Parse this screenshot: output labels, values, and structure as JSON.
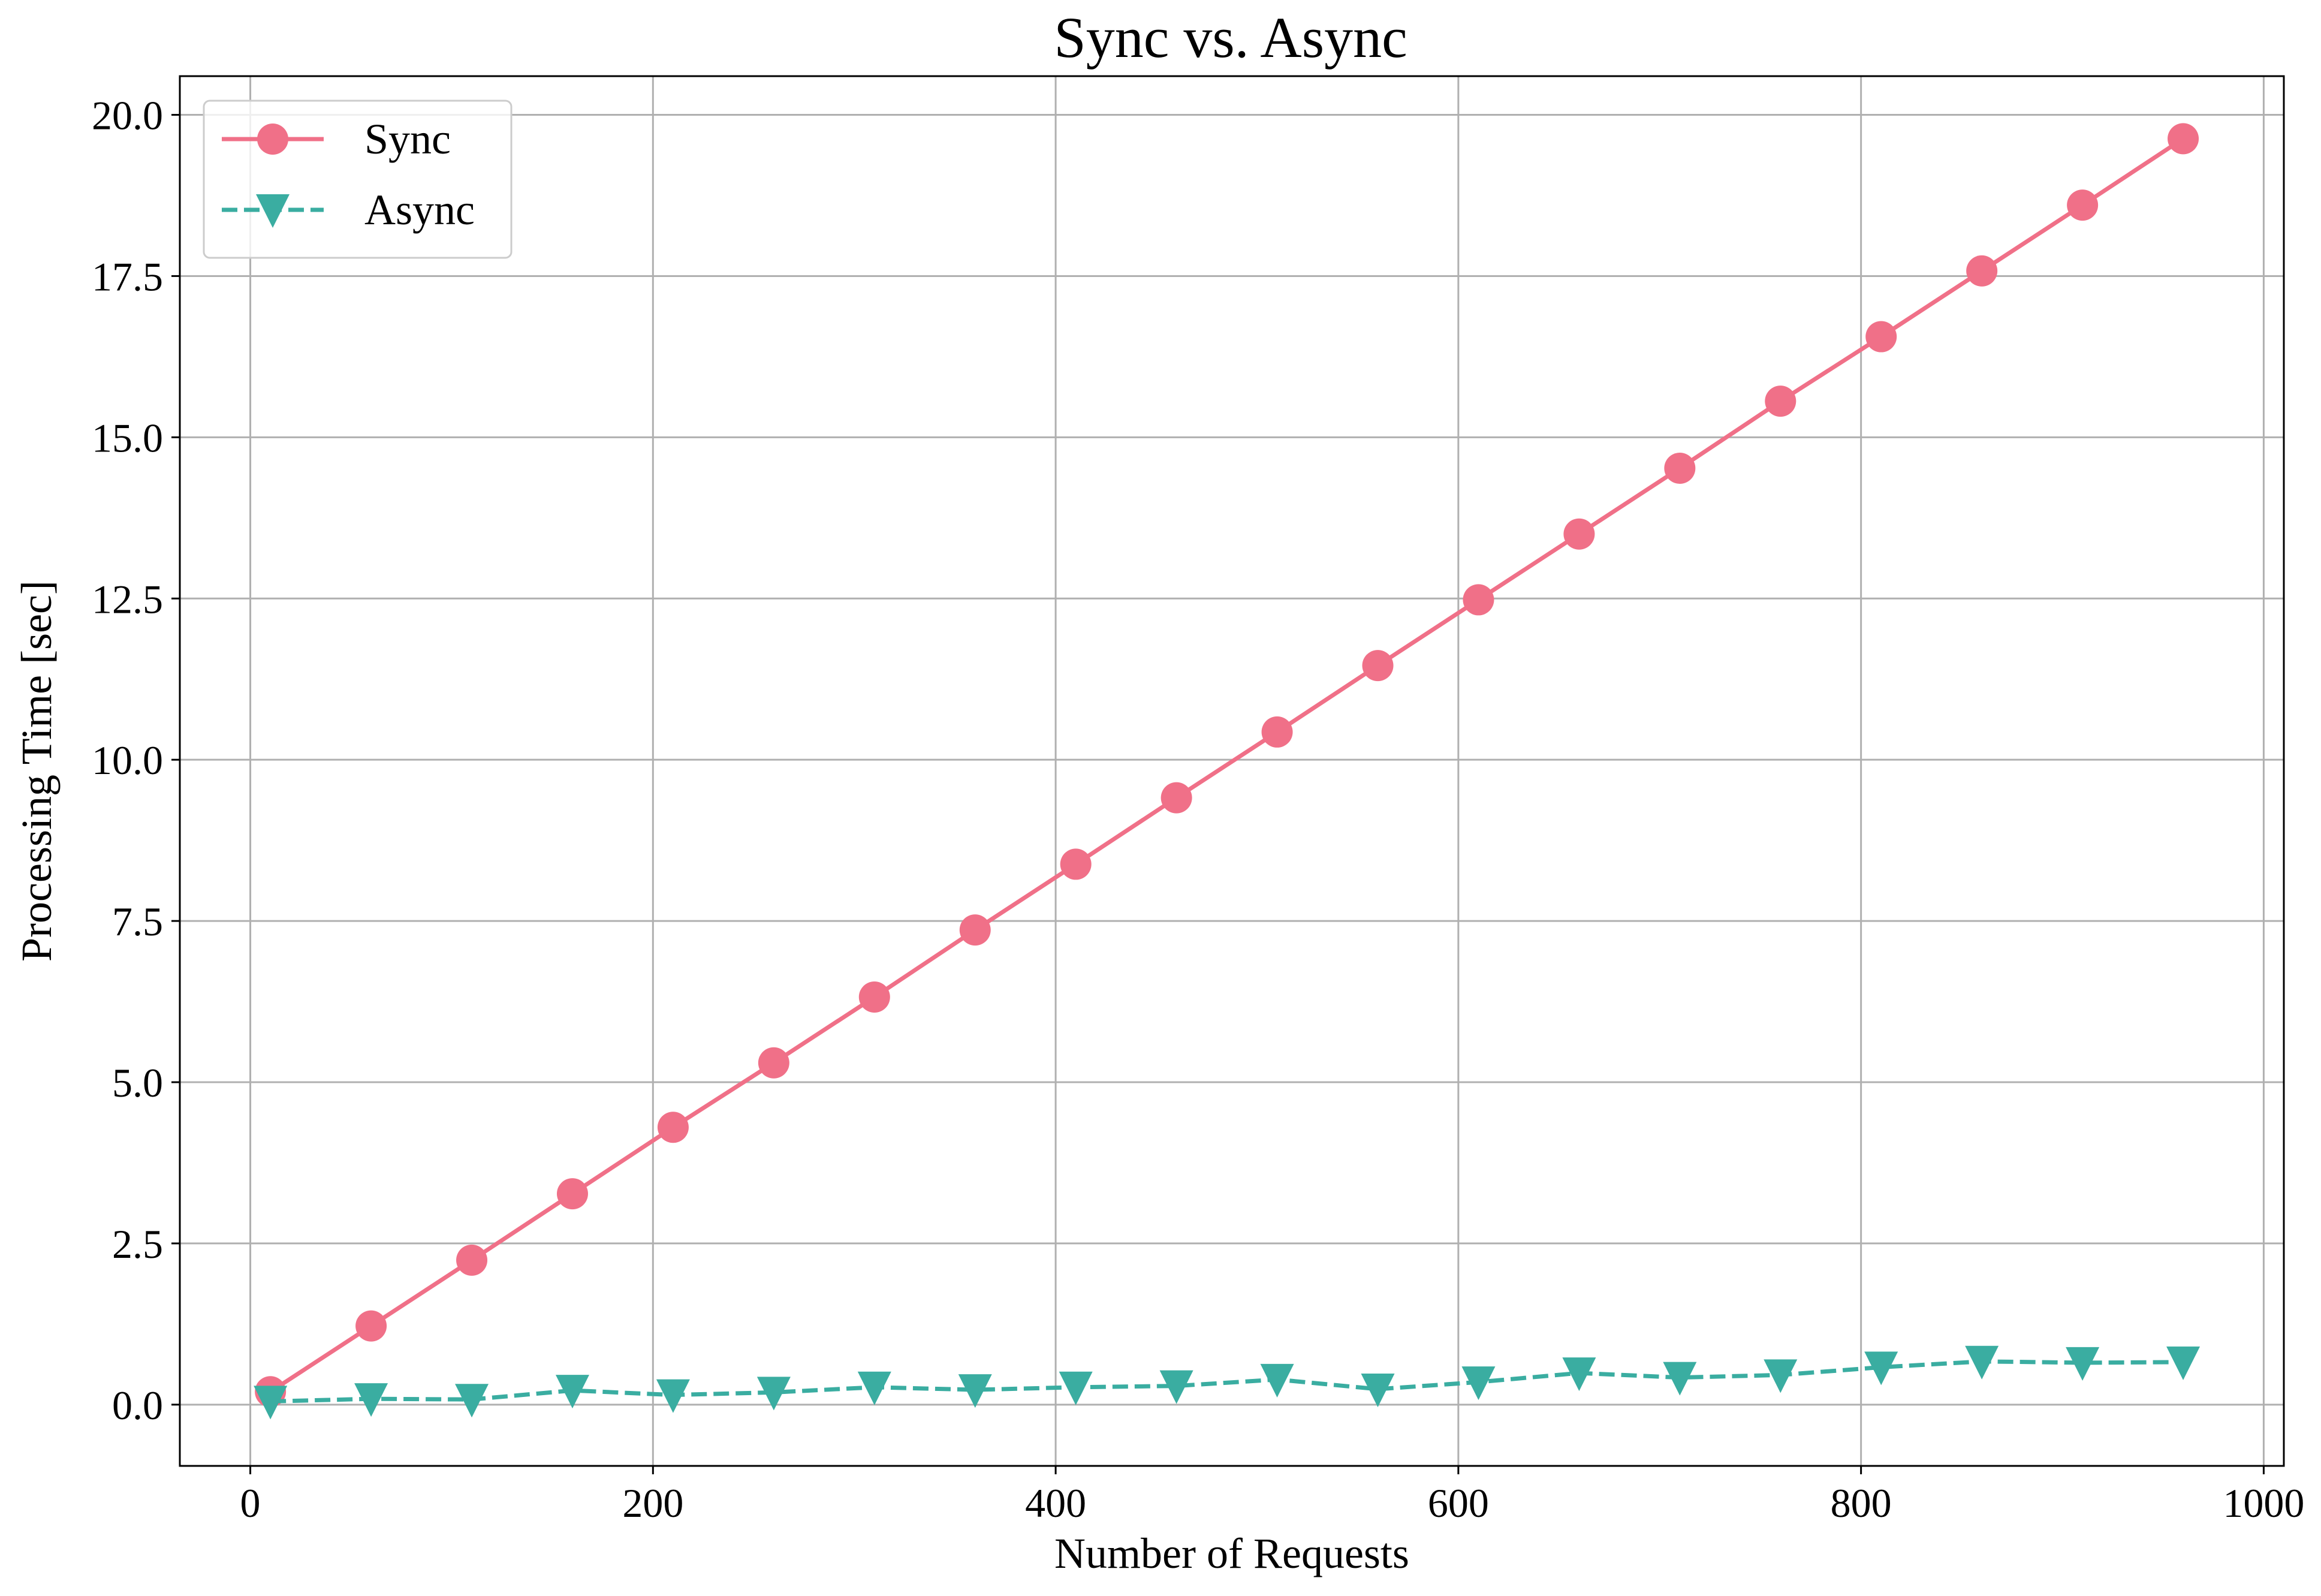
{
  "chart_data": {
    "type": "line",
    "title": "Sync vs. Async",
    "xlabel": "Number of Requests",
    "ylabel": "Processing Time [sec]",
    "xlim": [
      -35,
      1010
    ],
    "ylim": [
      -0.95,
      20.6
    ],
    "xticks": [
      0,
      200,
      400,
      600,
      800,
      1000
    ],
    "xtick_labels": [
      "0",
      "200",
      "400",
      "600",
      "800",
      "1000"
    ],
    "yticks": [
      0.0,
      2.5,
      5.0,
      7.5,
      10.0,
      12.5,
      15.0,
      17.5,
      20.0
    ],
    "ytick_labels": [
      "0.0",
      "2.5",
      "5.0",
      "7.5",
      "10.0",
      "12.5",
      "15.0",
      "17.5",
      "20.0"
    ],
    "grid": true,
    "legend_position": "top-left",
    "x": [
      10,
      60,
      110,
      160,
      210,
      260,
      310,
      360,
      410,
      460,
      510,
      560,
      610,
      660,
      710,
      760,
      810,
      860,
      910,
      960
    ],
    "series": [
      {
        "name": "Sync",
        "color": "#f07088",
        "line_style": "solid",
        "marker": "circle",
        "values": [
          0.2,
          1.22,
          2.24,
          3.27,
          4.3,
          5.3,
          6.32,
          7.36,
          8.38,
          9.41,
          10.43,
          11.46,
          12.48,
          13.5,
          14.52,
          15.56,
          16.56,
          17.58,
          18.6,
          19.63
        ]
      },
      {
        "name": "Async",
        "color": "#3aada1",
        "line_style": "dashed",
        "marker": "triangle-down",
        "values": [
          0.05,
          0.09,
          0.08,
          0.22,
          0.15,
          0.19,
          0.27,
          0.23,
          0.27,
          0.29,
          0.39,
          0.24,
          0.35,
          0.49,
          0.42,
          0.46,
          0.58,
          0.67,
          0.65,
          0.66
        ]
      }
    ]
  }
}
